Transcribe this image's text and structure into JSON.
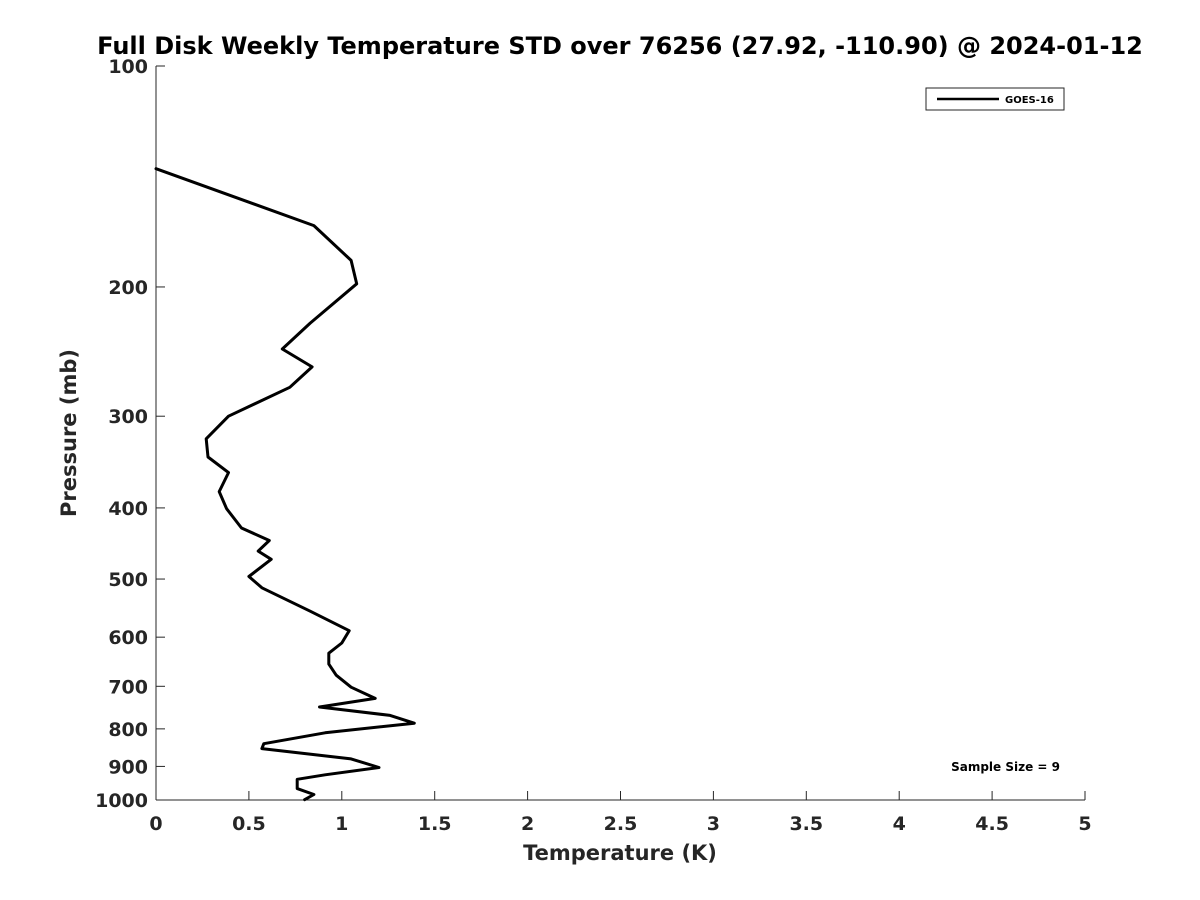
{
  "chart_data": {
    "type": "line",
    "title": "Full Disk Weekly Temperature STD over 76256 (27.92, -110.90) @ 2024-01-12",
    "xlabel": "Temperature (K)",
    "ylabel": "Pressure (mb)",
    "xlim": [
      0,
      5
    ],
    "ylim": [
      1000,
      100
    ],
    "yscale": "log",
    "xticks": [
      0,
      0.5,
      1,
      1.5,
      2,
      2.5,
      3,
      3.5,
      4,
      4.5,
      5
    ],
    "xtick_labels": [
      "0",
      "0.5",
      "1",
      "1.5",
      "2",
      "2.5",
      "3",
      "3.5",
      "4",
      "4.5",
      "5"
    ],
    "yticks": [
      100,
      200,
      300,
      400,
      500,
      600,
      700,
      800,
      900,
      1000
    ],
    "ytick_labels": [
      "100",
      "200",
      "300",
      "400",
      "500",
      "600",
      "700",
      "800",
      "900",
      "1000"
    ],
    "grid": false,
    "legend": {
      "position": "top-right",
      "entries": [
        "GOES-16"
      ]
    },
    "annotation": "Sample Size = 9",
    "series": [
      {
        "name": "GOES-16",
        "color": "#000000",
        "x": [
          0.0,
          0.85,
          1.05,
          1.08,
          0.83,
          0.68,
          0.84,
          0.72,
          0.39,
          0.27,
          0.28,
          0.39,
          0.34,
          0.38,
          0.46,
          0.61,
          0.55,
          0.62,
          0.5,
          0.57,
          0.83,
          1.04,
          1.0,
          0.93,
          0.93,
          0.97,
          1.05,
          1.18,
          0.88,
          1.26,
          1.39,
          0.91,
          0.58,
          0.57,
          1.05,
          1.2,
          0.91,
          0.76,
          0.76,
          0.85,
          0.8
        ],
        "y": [
          138,
          165,
          184,
          198,
          224,
          243,
          257,
          274,
          300,
          322,
          341,
          358,
          380,
          401,
          426,
          443,
          458,
          470,
          496,
          514,
          553,
          588,
          611,
          631,
          653,
          676,
          702,
          727,
          747,
          767,
          786,
          810,
          838,
          851,
          879,
          903,
          924,
          937,
          965,
          983,
          999
        ]
      }
    ]
  }
}
